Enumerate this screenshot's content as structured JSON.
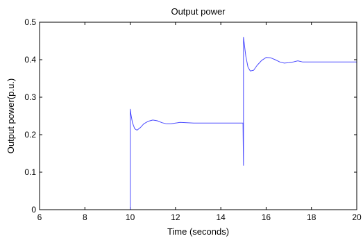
{
  "chart_data": {
    "type": "line",
    "title": "Output power",
    "xlabel": "Time (seconds)",
    "ylabel": "Output power(p.u.)",
    "xlim": [
      6,
      20
    ],
    "ylim": [
      0,
      0.5
    ],
    "xticks": [
      6,
      8,
      10,
      12,
      14,
      16,
      18,
      20
    ],
    "yticks": [
      0,
      0.1,
      0.2,
      0.3,
      0.4,
      0.5
    ],
    "xtick_labels": [
      "6",
      "8",
      "10",
      "12",
      "14",
      "16",
      "18",
      "20"
    ],
    "ytick_labels": [
      "0",
      "0.1",
      "0.2",
      "0.3",
      "0.4",
      "0.5"
    ],
    "grid": false,
    "line_color": "#4a4aff",
    "series": [
      {
        "x": [
          6,
          10,
          10,
          10.03,
          10.1,
          10.2,
          10.3,
          10.45,
          10.6,
          10.8,
          11.0,
          11.2,
          11.4,
          11.6,
          11.8,
          12.0,
          12.2,
          12.5,
          12.8,
          13.2,
          13.6,
          14.0,
          14.5,
          14.98,
          15.0,
          15.0,
          15.03,
          15.1,
          15.2,
          15.3,
          15.45,
          15.6,
          15.8,
          16.0,
          16.2,
          16.4,
          16.6,
          16.8,
          17.0,
          17.2,
          17.4,
          17.6,
          18.0,
          18.5,
          19.0,
          19.5,
          20.0
        ],
        "y": [
          0,
          0,
          0.268,
          0.255,
          0.232,
          0.216,
          0.212,
          0.219,
          0.229,
          0.236,
          0.239,
          0.237,
          0.232,
          0.229,
          0.229,
          0.231,
          0.233,
          0.232,
          0.231,
          0.231,
          0.231,
          0.231,
          0.231,
          0.231,
          0.118,
          0.46,
          0.445,
          0.41,
          0.38,
          0.37,
          0.372,
          0.385,
          0.398,
          0.406,
          0.405,
          0.4,
          0.394,
          0.391,
          0.392,
          0.394,
          0.397,
          0.394,
          0.394,
          0.394,
          0.394,
          0.394,
          0.394
        ]
      }
    ]
  }
}
